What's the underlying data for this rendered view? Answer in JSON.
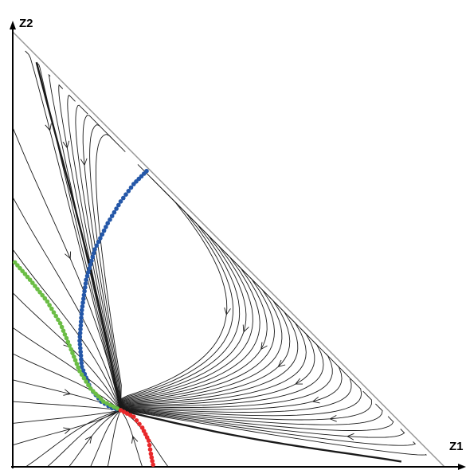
{
  "axes": {
    "x_label": "Z1",
    "y_label": "Z2",
    "axis_color": "#000000",
    "boundary_color": "#999999"
  },
  "equilibrium": {
    "z1": 0.25,
    "z2": 0.13
  },
  "streamline_color": "#1a1a1a",
  "trajectories": [
    {
      "name": "blue-trajectory",
      "color": "#2457a8",
      "points": [
        [
          0.31,
          0.68
        ],
        [
          0.28,
          0.65
        ],
        [
          0.25,
          0.61
        ],
        [
          0.22,
          0.56
        ],
        [
          0.19,
          0.5
        ],
        [
          0.17,
          0.43
        ],
        [
          0.16,
          0.36
        ],
        [
          0.155,
          0.29
        ],
        [
          0.16,
          0.23
        ],
        [
          0.18,
          0.18
        ],
        [
          0.205,
          0.15
        ],
        [
          0.23,
          0.135
        ],
        [
          0.25,
          0.13
        ]
      ]
    },
    {
      "name": "green-trajectory",
      "color": "#6bbd45",
      "points": [
        [
          0.005,
          0.47
        ],
        [
          0.04,
          0.43
        ],
        [
          0.08,
          0.38
        ],
        [
          0.11,
          0.33
        ],
        [
          0.135,
          0.27
        ],
        [
          0.155,
          0.22
        ],
        [
          0.18,
          0.18
        ],
        [
          0.21,
          0.15
        ],
        [
          0.25,
          0.13
        ]
      ]
    },
    {
      "name": "red-trajectory",
      "color": "#e8282b",
      "points": [
        [
          0.25,
          0.13
        ],
        [
          0.28,
          0.115
        ],
        [
          0.3,
          0.09
        ],
        [
          0.315,
          0.06
        ],
        [
          0.32,
          0.03
        ],
        [
          0.325,
          0.005
        ]
      ]
    }
  ]
}
